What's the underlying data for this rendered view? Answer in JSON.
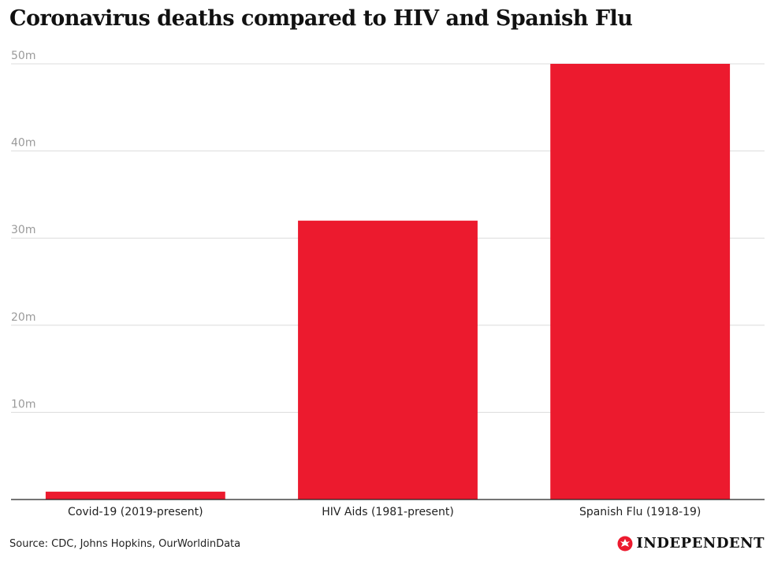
{
  "chart_data": {
    "type": "bar",
    "title": "Coronavirus deaths compared to HIV and Spanish Flu",
    "categories": [
      "Covid-19 (2019-present)",
      "HIV Aids (1981-present)",
      "Spanish Flu (1918-19)"
    ],
    "values": [
      0.9,
      32,
      50
    ],
    "unit_suffix": "m",
    "ylim": [
      0,
      50
    ],
    "yticks": [
      10,
      20,
      30,
      40,
      50
    ],
    "ytick_labels": [
      "10m",
      "20m",
      "30m",
      "40m",
      "50m"
    ],
    "xlabel": "",
    "ylabel": "",
    "bar_color": "#ec1a2e",
    "grid": true
  },
  "footer": {
    "source": "Source: CDC, Johns Hopkins, OurWorldinData",
    "brand": "INDEPENDENT",
    "brand_color": "#ec1a2e",
    "brand_icon": "eagle-logo-icon"
  }
}
